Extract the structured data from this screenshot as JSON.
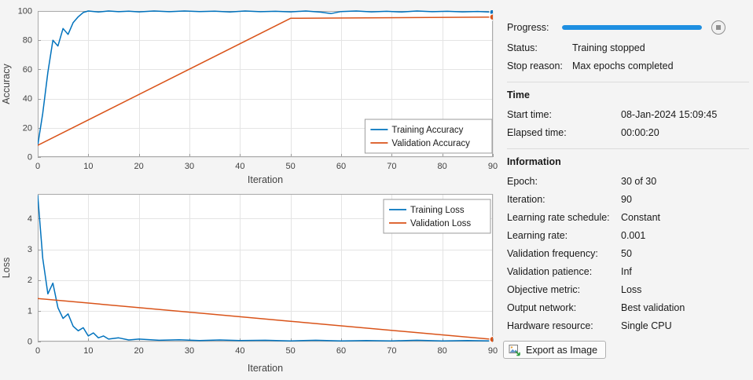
{
  "colors": {
    "training": "#0072BD",
    "validation": "#D95319",
    "progress_bar": "#1E8FE1",
    "background": "#F4F4F4"
  },
  "panel": {
    "progress_label": "Progress:",
    "progress_percent": 100,
    "status_label": "Status:",
    "status_value": "Training stopped",
    "stop_reason_label": "Stop reason:",
    "stop_reason_value": "Max epochs completed",
    "time_heading": "Time",
    "time_rows": [
      {
        "label": "Start time:",
        "value": "08-Jan-2024 15:09:45"
      },
      {
        "label": "Elapsed time:",
        "value": "00:00:20"
      }
    ],
    "information_heading": "Information",
    "info_rows": [
      {
        "label": "Epoch:",
        "value": "30 of 30"
      },
      {
        "label": "Iteration:",
        "value": "90"
      },
      {
        "label": "Learning rate schedule:",
        "value": "Constant"
      },
      {
        "label": "Learning rate:",
        "value": "0.001"
      },
      {
        "label": "Validation frequency:",
        "value": "50"
      },
      {
        "label": "Validation patience:",
        "value": "Inf"
      },
      {
        "label": "Objective metric:",
        "value": "Loss"
      },
      {
        "label": "Output network:",
        "value": "Best validation"
      },
      {
        "label": "Hardware resource:",
        "value": "Single CPU"
      }
    ],
    "export_button_label": "Export as Image"
  },
  "chart_data": [
    {
      "type": "line",
      "title": "",
      "xlabel": "Iteration",
      "ylabel": "Accuracy",
      "xlim": [
        0,
        90
      ],
      "ylim": [
        0,
        100
      ],
      "xticks": [
        0,
        10,
        20,
        30,
        40,
        50,
        60,
        70,
        80,
        90
      ],
      "yticks": [
        0,
        20,
        40,
        60,
        80,
        100
      ],
      "grid": true,
      "legend": "se",
      "margins": {
        "l": 48,
        "r": 13,
        "t": 12,
        "b": 38
      },
      "series": [
        {
          "name": "Training Accuracy",
          "color": "#0072BD",
          "end_marker": true,
          "x": [
            0,
            1,
            2,
            3,
            4,
            5,
            6,
            7,
            8,
            9,
            10,
            12,
            14,
            16,
            18,
            20,
            23,
            26,
            29,
            32,
            35,
            38,
            41,
            44,
            47,
            50,
            53,
            56,
            58,
            60,
            63,
            66,
            69,
            72,
            75,
            78,
            81,
            84,
            87,
            90
          ],
          "y": [
            8,
            30,
            58,
            80,
            76,
            88,
            84,
            92,
            96,
            99,
            100,
            99.3,
            100,
            99.5,
            99.9,
            99.4,
            100,
            99.5,
            100,
            99.6,
            99.9,
            99.3,
            100,
            99.5,
            99.8,
            99.4,
            100,
            99.2,
            98.2,
            99.6,
            100,
            99.4,
            99.8,
            99.3,
            100,
            99.5,
            99.8,
            99.4,
            99.7,
            99.2
          ]
        },
        {
          "name": "Validation Accuracy",
          "color": "#D95319",
          "end_marker": true,
          "x": [
            0,
            50,
            90
          ],
          "y": [
            8,
            95,
            95.8
          ]
        }
      ]
    },
    {
      "type": "line",
      "title": "",
      "xlabel": "Iteration",
      "ylabel": "Loss",
      "xlim": [
        0,
        90
      ],
      "ylim": [
        0,
        4.8
      ],
      "xticks": [
        0,
        10,
        20,
        30,
        40,
        50,
        60,
        70,
        80,
        90
      ],
      "yticks": [
        0,
        1,
        2,
        3,
        4
      ],
      "grid": true,
      "legend": "ne",
      "margins": {
        "l": 48,
        "r": 13,
        "t": 7,
        "b": 43
      },
      "series": [
        {
          "name": "Training Loss",
          "color": "#0072BD",
          "end_marker": true,
          "x": [
            0,
            1,
            2,
            3,
            4,
            5,
            6,
            7,
            8,
            9,
            10,
            11,
            12,
            13,
            14,
            16,
            18,
            20,
            24,
            28,
            32,
            36,
            40,
            45,
            50,
            55,
            60,
            65,
            70,
            75,
            80,
            85,
            90
          ],
          "y": [
            4.75,
            2.7,
            1.55,
            1.9,
            1.1,
            0.75,
            0.9,
            0.5,
            0.35,
            0.45,
            0.18,
            0.28,
            0.12,
            0.18,
            0.08,
            0.12,
            0.05,
            0.08,
            0.04,
            0.06,
            0.03,
            0.05,
            0.03,
            0.04,
            0.02,
            0.04,
            0.02,
            0.03,
            0.02,
            0.04,
            0.02,
            0.03,
            0.02
          ]
        },
        {
          "name": "Validation Loss",
          "color": "#D95319",
          "end_marker": true,
          "x": [
            0,
            50,
            90
          ],
          "y": [
            1.4,
            0.66,
            0.07
          ]
        }
      ]
    }
  ]
}
